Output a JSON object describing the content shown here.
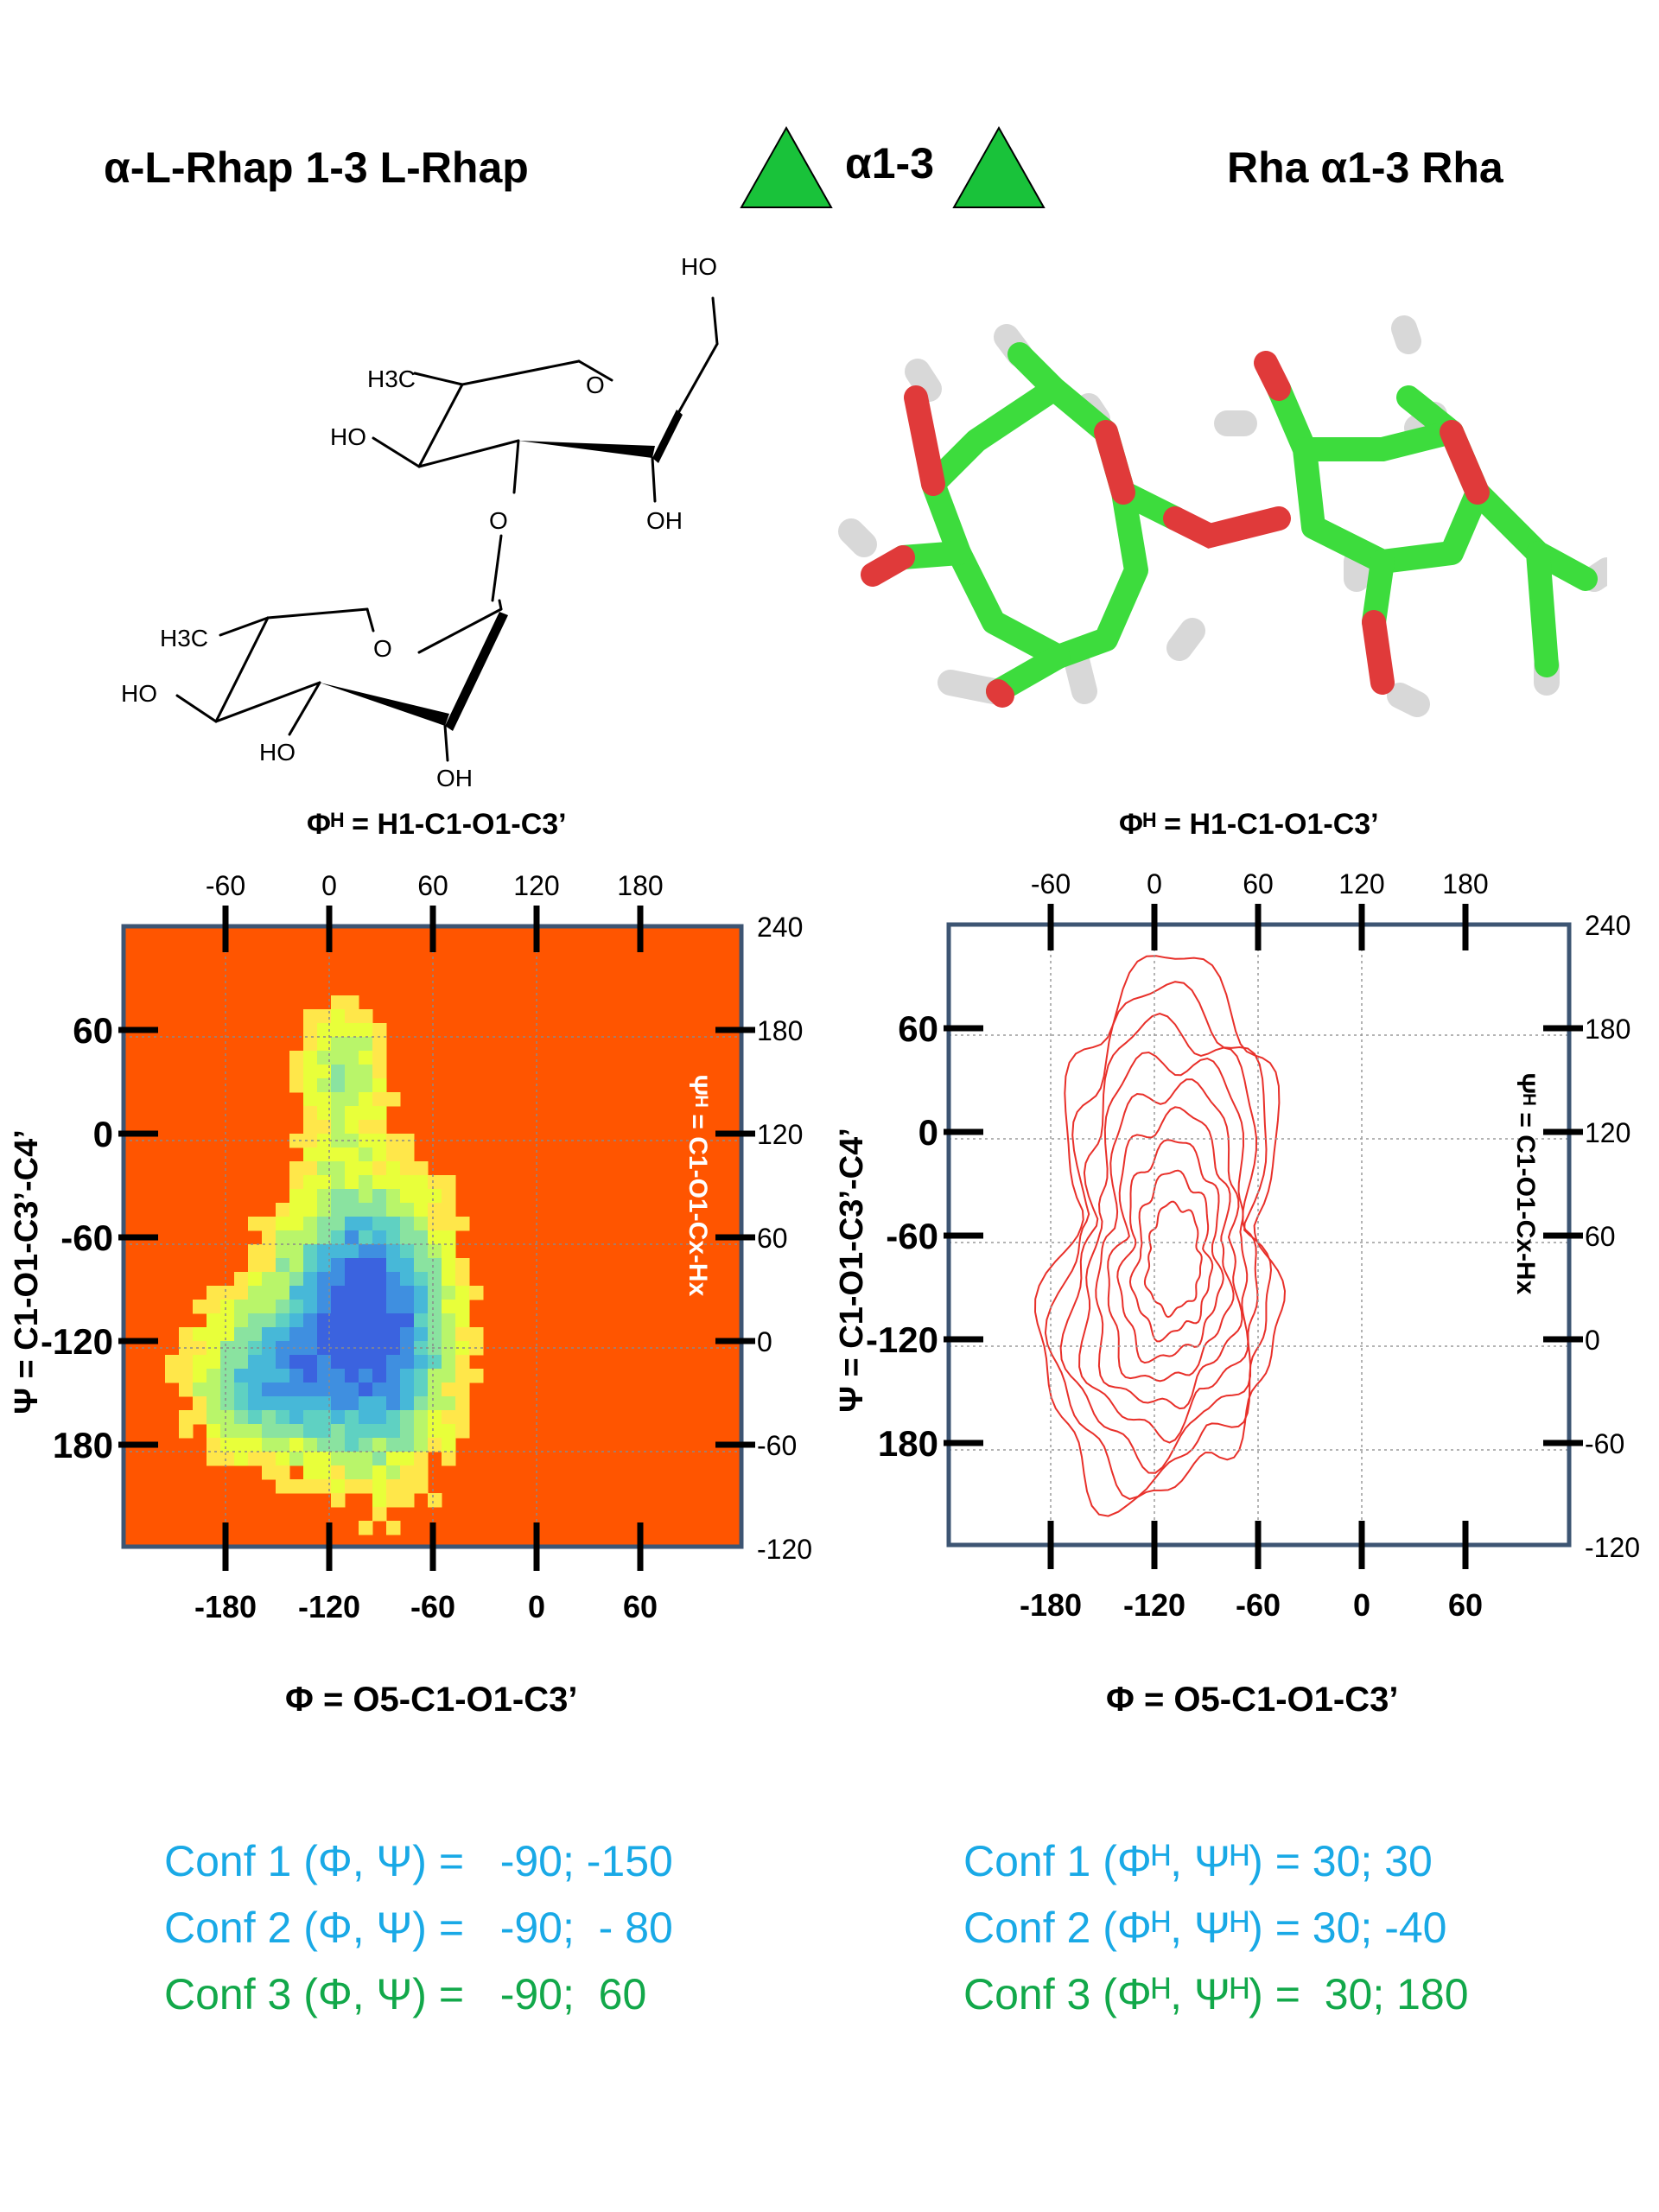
{
  "header": {
    "left_title": "α-L-Rhap 1-3 L-Rhap",
    "center_label": "α1-3",
    "right_title": "Rha α1-3 Rha",
    "triangle_color": "#19c23a"
  },
  "structure": {
    "labels": [
      "HO",
      "H3C",
      "O",
      "HO",
      "OH",
      "O",
      "H3C",
      "O",
      "HO",
      "HO",
      "OH"
    ]
  },
  "colors": {
    "carbon": "#3ddc3d",
    "oxygen": "#e03a3a",
    "hydrogen": "#e6e6e6",
    "heatmap_bg": "#ff5500",
    "contour": "#e8302a",
    "conf_blue": "#19a9e6",
    "conf_green": "#12a84a"
  },
  "chart_data": [
    {
      "type": "heatmap",
      "top_title": "Φᴴ = H1-C1-O1-C3’",
      "bottom_title": "Φ = O5-C1-O1-C3’",
      "left_title": "Ψ = C1-O1-C3’-C4’",
      "right_title": "Ψᴴ = C1-O1-Cx-Hx",
      "x_bottom_ticks": [
        "-180",
        "-120",
        "-60",
        "0",
        "60"
      ],
      "x_top_ticks": [
        "-60",
        "0",
        "60",
        "120",
        "180"
      ],
      "y_left_ticks": [
        "60",
        "0",
        "-60",
        "-120",
        "180"
      ],
      "y_right_ticks": [
        "240",
        "180",
        "120",
        "60",
        "0",
        "-60",
        "-120"
      ],
      "grid": true
    },
    {
      "type": "contour",
      "top_title": "Φᴴ = H1-C1-O1-C3’",
      "bottom_title": "Φ = O5-C1-O1-C3’",
      "left_title": "Ψ = C1-O1-C3’-C4’",
      "right_title": "Ψᴴ = C1-O1-Cx-Hx",
      "x_bottom_ticks": [
        "-180",
        "-120",
        "-60",
        "0",
        "60"
      ],
      "x_top_ticks": [
        "-60",
        "0",
        "60",
        "120",
        "180"
      ],
      "y_left_ticks": [
        "60",
        "0",
        "-60",
        "-120",
        "180"
      ],
      "y_right_ticks": [
        "240",
        "180",
        "120",
        "60",
        "0",
        "-60",
        "-120"
      ],
      "grid": true
    }
  ],
  "conformations": {
    "left": [
      {
        "text": "Conf 1 (Φ, Ψ) =   -90; -150",
        "color": "blue"
      },
      {
        "text": "Conf 2 (Φ, Ψ) =   -90;  - 80",
        "color": "blue"
      },
      {
        "text": "Conf 3 (Φ, Ψ) =   -90;  60",
        "color": "green"
      }
    ],
    "right": [
      {
        "text": "Conf 1 (Φᴴ, Ψᴴ) = 30; 30",
        "color": "blue"
      },
      {
        "text": "Conf 2 (Φᴴ, Ψᴴ) = 30; -40",
        "color": "blue"
      },
      {
        "text": "Conf 3 (Φᴴ, Ψᴴ) =  30; 180",
        "color": "green"
      }
    ]
  }
}
